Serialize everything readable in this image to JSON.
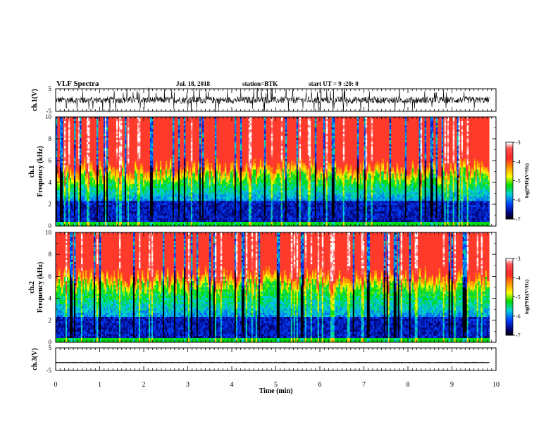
{
  "header": {
    "title": "VLF Spectra",
    "date": "Jul. 18, 2018",
    "station": "station=BTK",
    "start_ut": "start UT =  9 :20: 0"
  },
  "colorbar": {
    "label": "log(PSD)(V²/Hz)",
    "ticks": [
      "-3",
      "-4",
      "-5",
      "-6",
      "-7"
    ],
    "colors": [
      "#ffffff",
      "#ff3030",
      "#ff9a00",
      "#ffff00",
      "#00e000",
      "#00d8d8",
      "#0040ff",
      "#000070",
      "#000000"
    ]
  },
  "chart_data": [
    {
      "type": "line",
      "name": "ch1-waveform",
      "ylabel": "ch.1(V)",
      "ylim": [
        -5,
        5
      ],
      "yticks": [
        "5",
        "-5"
      ],
      "xlim": [
        0,
        10
      ],
      "description_values": {
        "baseline": 0,
        "typical_amplitude": 1.5,
        "spike_max": 5
      }
    },
    {
      "type": "heatmap",
      "name": "ch1-spectrogram",
      "ylabel_top": "ch.1",
      "ylabel": "Frequency (kHz)",
      "ylim": [
        0,
        10
      ],
      "yticks": [
        "0",
        "2",
        "4",
        "6",
        "8",
        "10"
      ],
      "xlim": [
        0,
        10
      ],
      "z_range": [
        -7,
        -3
      ]
    },
    {
      "type": "heatmap",
      "name": "ch2-spectrogram",
      "ylabel_top": "ch.2",
      "ylabel": "Frequency (kHz)",
      "ylim": [
        0,
        10
      ],
      "yticks": [
        "0",
        "2",
        "4",
        "6",
        "8",
        "10"
      ],
      "xlim": [
        0,
        10
      ],
      "z_range": [
        -7,
        -3
      ]
    },
    {
      "type": "line",
      "name": "ch3-waveform",
      "ylabel": "ch.3(V)",
      "ylim": [
        -5,
        5
      ],
      "yticks": [
        "5",
        "-5"
      ],
      "xlim": [
        0,
        10
      ],
      "description_values": {
        "constant_level": -1.5
      }
    }
  ],
  "xaxis": {
    "label": "Time (min)",
    "ticks": [
      "0",
      "1",
      "2",
      "3",
      "4",
      "5",
      "6",
      "7",
      "8",
      "9",
      "10"
    ],
    "data_end": 9.85
  }
}
